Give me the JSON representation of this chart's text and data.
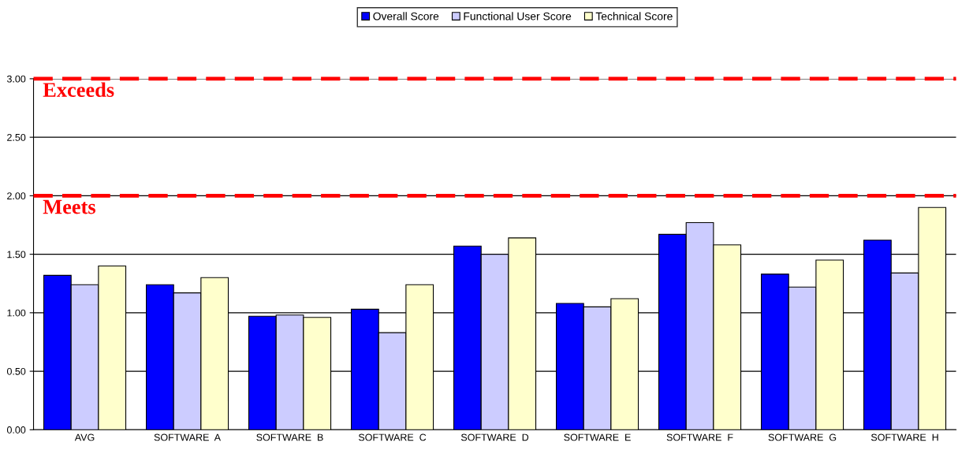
{
  "chart_data": {
    "type": "bar",
    "categories": [
      "AVG",
      "SOFTWARE  A",
      "SOFTWARE  B",
      "SOFTWARE  C",
      "SOFTWARE  D",
      "SOFTWARE  E",
      "SOFTWARE  F",
      "SOFTWARE  G",
      "SOFTWARE  H"
    ],
    "series": [
      {
        "name": "Overall Score",
        "color": "#0000ff",
        "values": [
          1.32,
          1.24,
          0.97,
          1.03,
          1.57,
          1.08,
          1.67,
          1.33,
          1.62
        ]
      },
      {
        "name": "Functional User Score",
        "color": "#ccccff",
        "values": [
          1.24,
          1.17,
          0.98,
          0.83,
          1.5,
          1.05,
          1.77,
          1.22,
          1.34
        ]
      },
      {
        "name": "Technical Score",
        "color": "#ffffcc",
        "values": [
          1.4,
          1.3,
          0.96,
          1.24,
          1.64,
          1.12,
          1.58,
          1.45,
          1.9
        ]
      }
    ],
    "ylim": [
      0,
      3
    ],
    "yticks": [
      {
        "value": 0,
        "label": "0.00"
      },
      {
        "value": 0.5,
        "label": "0.50"
      },
      {
        "value": 1,
        "label": "1.00"
      },
      {
        "value": 1.5,
        "label": "1.50"
      },
      {
        "value": 2,
        "label": "2.00"
      },
      {
        "value": 2.5,
        "label": "2.50"
      },
      {
        "value": 3,
        "label": "3.00"
      }
    ],
    "ref_lines": [
      {
        "axis": "y",
        "value": 3,
        "label": "Exceeds",
        "color": "#ff0000",
        "line_style": "dashed"
      },
      {
        "axis": "y",
        "value": 2,
        "label": "Meets",
        "color": "#ff0000",
        "line_style": "dashed"
      }
    ],
    "grid": "y",
    "legend": "top"
  }
}
